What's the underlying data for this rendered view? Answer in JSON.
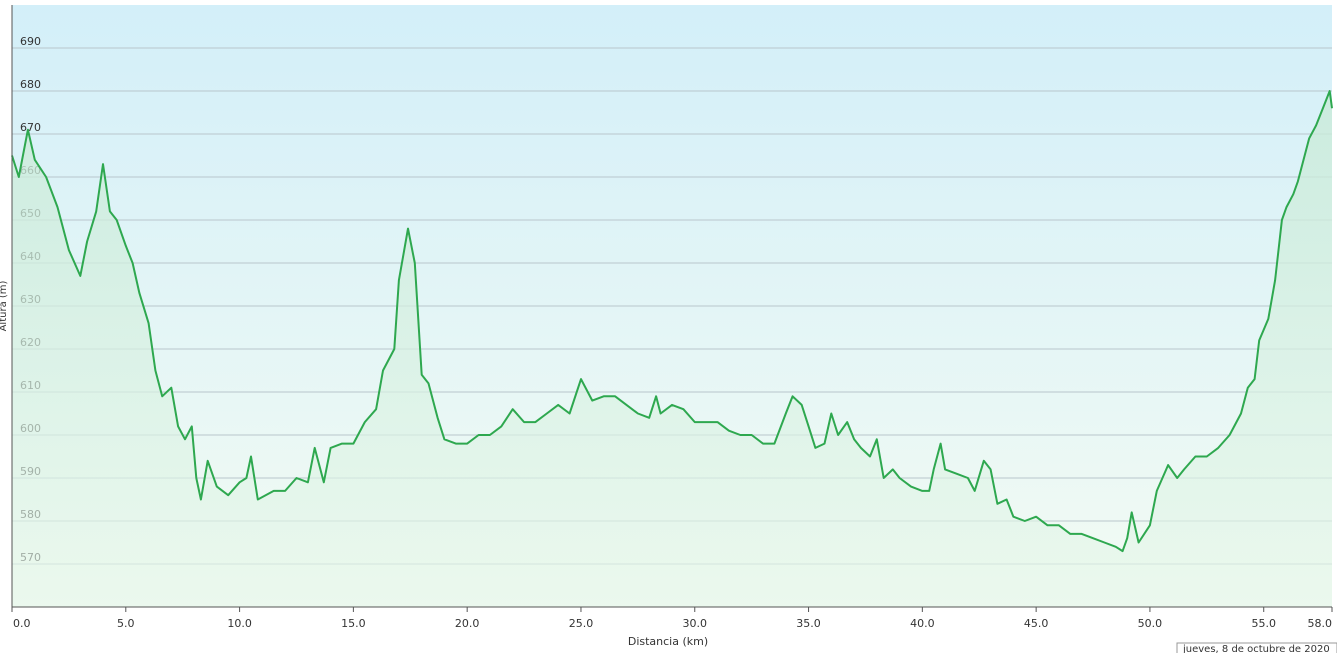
{
  "chart_data": {
    "type": "area",
    "x_label": "Distancia  (km)",
    "y_label": "Altura (m)",
    "annotation": "jueves, 8 de octubre de 2020",
    "color": "#2ea84f",
    "grid": true,
    "xlim": [
      0,
      58
    ],
    "ylim": [
      560,
      700
    ],
    "xticks": [
      {
        "value": 0,
        "label": "0.0"
      },
      {
        "value": 5,
        "label": "5.0"
      },
      {
        "value": 10,
        "label": "10.0"
      },
      {
        "value": 15,
        "label": "15.0"
      },
      {
        "value": 20,
        "label": "20.0"
      },
      {
        "value": 25,
        "label": "25.0"
      },
      {
        "value": 30,
        "label": "30.0"
      },
      {
        "value": 35,
        "label": "35.0"
      },
      {
        "value": 40,
        "label": "40.0"
      },
      {
        "value": 45,
        "label": "45.0"
      },
      {
        "value": 50,
        "label": "50.0"
      },
      {
        "value": 55,
        "label": "55.0"
      },
      {
        "value": 58,
        "label": "58.0"
      }
    ],
    "yticks": [
      570,
      580,
      590,
      600,
      610,
      620,
      630,
      640,
      650,
      660,
      670,
      680,
      690
    ],
    "x": [
      0,
      0.3,
      0.7,
      1,
      1.5,
      2,
      2.5,
      3,
      3.3,
      3.7,
      4,
      4.3,
      4.6,
      5,
      5.3,
      5.6,
      6,
      6.3,
      6.6,
      7,
      7.3,
      7.6,
      7.9,
      8.1,
      8.3,
      8.6,
      9,
      9.5,
      10,
      10.3,
      10.5,
      10.8,
      11.5,
      12,
      12.5,
      13,
      13.3,
      13.7,
      14,
      14.5,
      15,
      15.5,
      16,
      16.3,
      16.8,
      17,
      17.4,
      17.7,
      18,
      18.3,
      18.7,
      19,
      19.5,
      20,
      20.5,
      21,
      21.5,
      22,
      22.5,
      23,
      23.5,
      24,
      24.5,
      25,
      25.5,
      26,
      26.5,
      27,
      27.5,
      28,
      28.3,
      28.5,
      29,
      29.5,
      30,
      30.5,
      31,
      31.5,
      32,
      32.5,
      33,
      33.5,
      34,
      34.3,
      34.7,
      35,
      35.3,
      35.7,
      36,
      36.3,
      36.7,
      37,
      37.3,
      37.7,
      38,
      38.3,
      38.7,
      39,
      39.5,
      40,
      40.3,
      40.5,
      40.8,
      41,
      41.5,
      42,
      42.3,
      42.7,
      43,
      43.3,
      43.7,
      44,
      44.5,
      45,
      45.5,
      46,
      46.5,
      47,
      47.5,
      48,
      48.5,
      48.8,
      49,
      49.2,
      49.5,
      50,
      50.3,
      50.8,
      51.2,
      51.5,
      52,
      52.5,
      53,
      53.5,
      54,
      54.3,
      54.6,
      54.8,
      55.2,
      55.5,
      55.8,
      56,
      56.3,
      56.5,
      57,
      57.3,
      57.6,
      57.9,
      58
    ],
    "values": [
      665,
      660,
      671,
      664,
      660,
      653,
      643,
      637,
      645,
      652,
      663,
      652,
      650,
      644,
      640,
      633,
      626,
      615,
      609,
      611,
      602,
      599,
      602,
      590,
      585,
      594,
      588,
      586,
      589,
      590,
      595,
      585,
      587,
      587,
      590,
      589,
      597,
      589,
      597,
      598,
      598,
      603,
      606,
      615,
      620,
      636,
      648,
      640,
      614,
      612,
      604,
      599,
      598,
      598,
      600,
      600,
      602,
      606,
      603,
      603,
      605,
      607,
      605,
      613,
      608,
      609,
      609,
      607,
      605,
      604,
      609,
      605,
      607,
      606,
      603,
      603,
      603,
      601,
      600,
      600,
      598,
      598,
      605,
      609,
      607,
      602,
      597,
      598,
      605,
      600,
      603,
      599,
      597,
      595,
      599,
      590,
      592,
      590,
      588,
      587,
      587,
      592,
      598,
      592,
      591,
      590,
      587,
      594,
      592,
      584,
      585,
      581,
      580,
      581,
      579,
      579,
      577,
      577,
      576,
      575,
      574,
      573,
      576,
      582,
      575,
      579,
      587,
      593,
      590,
      592,
      595,
      595,
      597,
      600,
      605,
      611,
      613,
      622,
      627,
      636,
      650,
      653,
      656,
      659,
      669,
      672,
      676,
      680,
      676
    ]
  }
}
